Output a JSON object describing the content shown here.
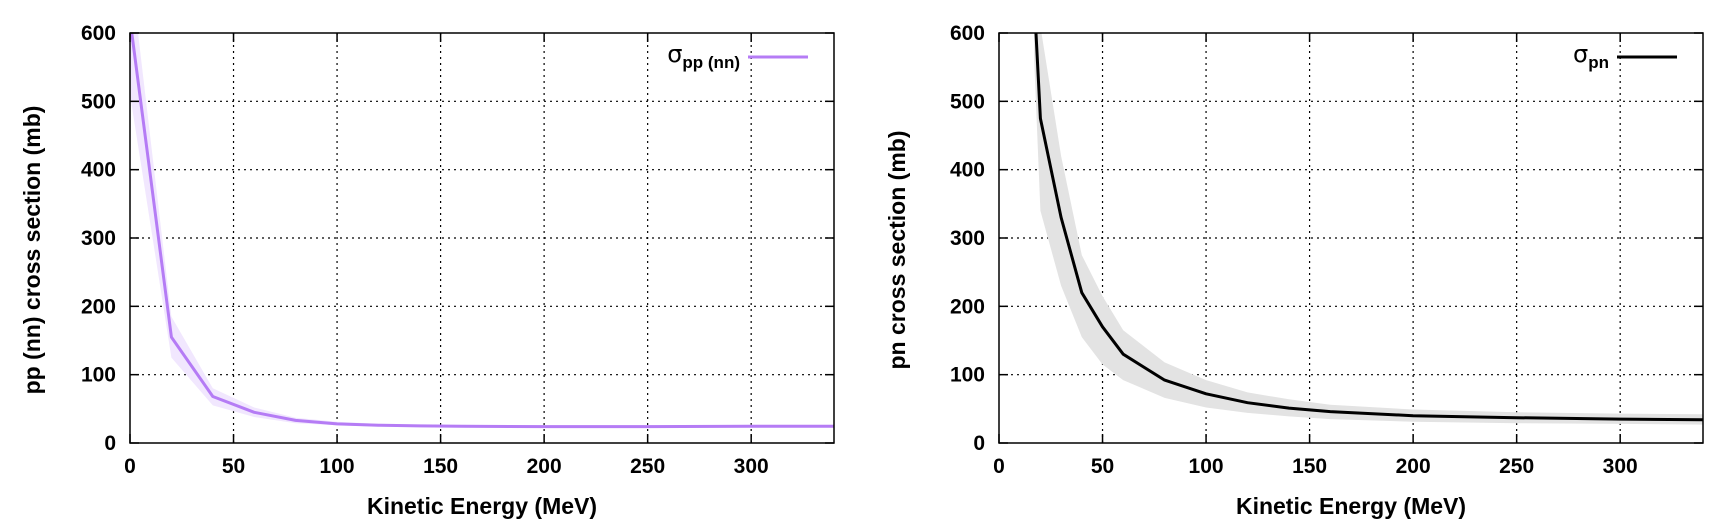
{
  "chart_data": [
    {
      "type": "line",
      "xlabel": "Kinetic Energy (MeV)",
      "ylabel": "pp (nn) cross section (mb)",
      "xlim": [
        0,
        340
      ],
      "ylim": [
        0,
        600
      ],
      "xticks": [
        0,
        50,
        100,
        150,
        200,
        250,
        300
      ],
      "yticks": [
        0,
        100,
        200,
        300,
        400,
        500,
        600
      ],
      "grid": true,
      "legend_position": "top-right",
      "legend": {
        "symbol": "σ",
        "subscript": "pp (nn)"
      },
      "series": [
        {
          "color": "#b57cf5",
          "band_color": "#f1e7fe",
          "x": [
            0,
            20,
            40,
            60,
            80,
            100,
            120,
            140,
            160,
            200,
            250,
            300,
            340
          ],
          "y": [
            620,
            155,
            68,
            45,
            33,
            28,
            26,
            25,
            24.5,
            24,
            24,
            24.5,
            24.5
          ],
          "y_low": [
            510,
            125,
            55,
            38,
            29,
            26,
            24,
            23,
            22.5,
            22,
            22,
            22.5,
            22.5
          ],
          "y_high": [
            700,
            185,
            80,
            52,
            37,
            31,
            28,
            27,
            26.5,
            26,
            26,
            26.5,
            26.5
          ]
        }
      ]
    },
    {
      "type": "line",
      "xlabel": "Kinetic Energy (MeV)",
      "ylabel": "pn cross section (mb)",
      "xlim": [
        0,
        340
      ],
      "ylim": [
        0,
        600
      ],
      "xticks": [
        0,
        50,
        100,
        150,
        200,
        250,
        300
      ],
      "yticks": [
        0,
        100,
        200,
        300,
        400,
        500,
        600
      ],
      "grid": true,
      "legend_position": "top-right",
      "legend": {
        "symbol": "σ",
        "subscript": "pn"
      },
      "series": [
        {
          "color": "#000000",
          "band_color": "#e3e3e3",
          "x": [
            17,
            20,
            30,
            40,
            50,
            60,
            80,
            100,
            120,
            140,
            160,
            200,
            250,
            300,
            340
          ],
          "y": [
            650,
            475,
            330,
            220,
            170,
            130,
            92,
            72,
            59,
            51,
            46,
            40,
            37,
            35,
            34
          ],
          "y_low": [
            560,
            340,
            230,
            155,
            115,
            92,
            66,
            52,
            44,
            39,
            35,
            31,
            29,
            28,
            27
          ],
          "y_high": [
            700,
            610,
            420,
            275,
            215,
            165,
            118,
            92,
            74,
            64,
            56,
            49,
            45,
            43,
            42
          ]
        }
      ]
    }
  ]
}
